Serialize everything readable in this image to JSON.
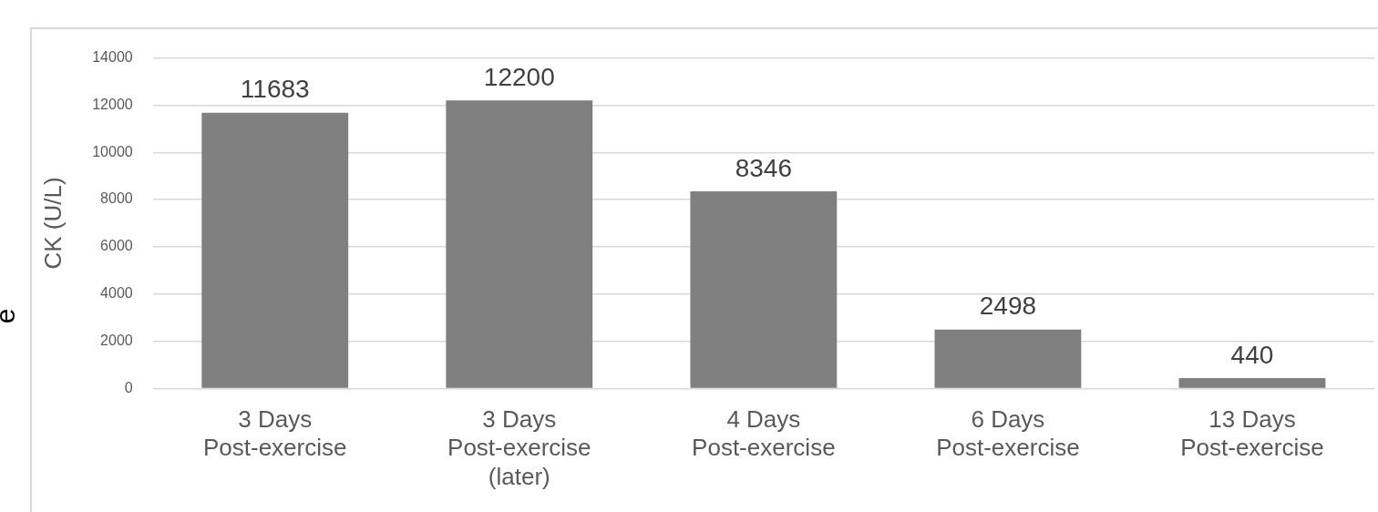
{
  "chart_data": {
    "type": "bar",
    "ylabel": "CK (U/L)",
    "categories": [
      "3 Days Post-exercise",
      "3 Days Post-exercise (later)",
      "4 Days Post-exercise",
      "6 Days Post-exercise",
      "13 Days Post-exercise"
    ],
    "values": [
      11683,
      12200,
      8346,
      2498,
      440
    ],
    "color": "#808080",
    "ylim": [
      0,
      14000
    ],
    "yticks": [
      0,
      2000,
      4000,
      6000,
      8000,
      10000,
      12000,
      14000
    ],
    "grid": "y",
    "data_labels": true,
    "annotations": [
      "e"
    ]
  }
}
